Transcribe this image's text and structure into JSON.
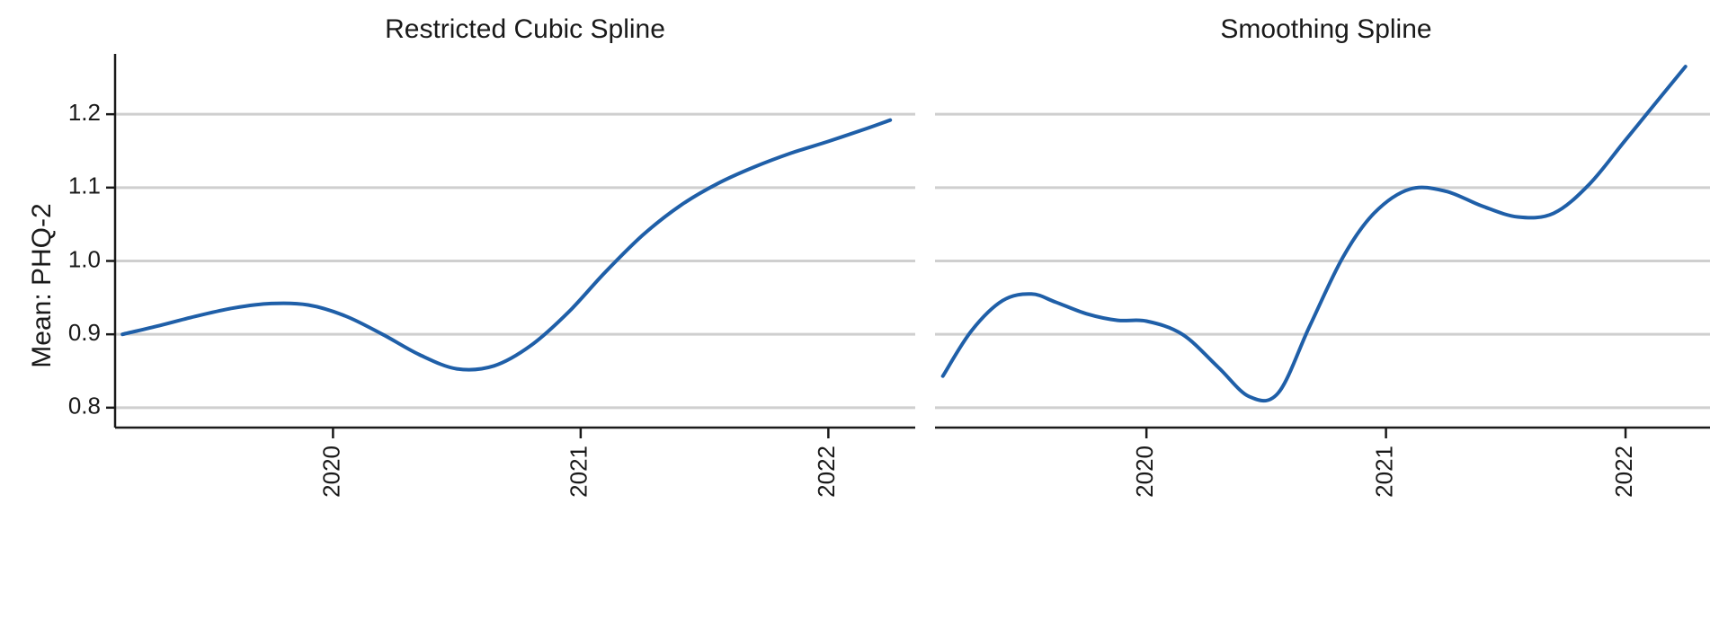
{
  "ylabel": "Mean: PHQ-2",
  "colors": {
    "line": "#1f5fa8",
    "grid": "#cfcfcf",
    "axis": "#1a1a1a"
  },
  "chart_data": [
    {
      "type": "line",
      "title": "Restricted Cubic Spline",
      "xlabel": "",
      "ylabel": "Mean: PHQ-2",
      "xlim": [
        2019.2,
        2022.3
      ],
      "ylim": [
        0.79,
        1.27
      ],
      "yticks": [
        0.8,
        0.9,
        1.0,
        1.1,
        1.2
      ],
      "ytick_labels": [
        "0.8",
        "0.9",
        "1.0",
        "1.1",
        "1.2"
      ],
      "xticks": [
        2020,
        2021,
        2022
      ],
      "xtick_labels": [
        "2020",
        "2021",
        "2022"
      ],
      "grid": "horizontal",
      "x": [
        2019.15,
        2019.3,
        2019.45,
        2019.6,
        2019.75,
        2019.9,
        2020.05,
        2020.2,
        2020.35,
        2020.5,
        2020.65,
        2020.8,
        2020.95,
        2021.1,
        2021.25,
        2021.4,
        2021.55,
        2021.7,
        2021.85,
        2022.0,
        2022.15,
        2022.25
      ],
      "y": [
        0.9,
        0.912,
        0.925,
        0.936,
        0.942,
        0.94,
        0.925,
        0.9,
        0.872,
        0.853,
        0.857,
        0.885,
        0.93,
        0.985,
        1.035,
        1.075,
        1.105,
        1.128,
        1.147,
        1.163,
        1.18,
        1.192
      ]
    },
    {
      "type": "line",
      "title": "Smoothing Spline",
      "xlabel": "",
      "ylabel": "",
      "xlim": [
        2019.2,
        2022.3
      ],
      "ylim": [
        0.79,
        1.27
      ],
      "yticks": [
        0.8,
        0.9,
        1.0,
        1.1,
        1.2
      ],
      "xticks": [
        2020,
        2021,
        2022
      ],
      "xtick_labels": [
        "2020",
        "2021",
        "2022"
      ],
      "grid": "horizontal",
      "x": [
        2019.15,
        2019.27,
        2019.4,
        2019.52,
        2019.62,
        2019.75,
        2019.88,
        2020.0,
        2020.15,
        2020.3,
        2020.43,
        2020.55,
        2020.68,
        2020.82,
        2020.95,
        2021.1,
        2021.25,
        2021.4,
        2021.55,
        2021.7,
        2021.85,
        2022.0,
        2022.15,
        2022.25
      ],
      "y": [
        0.843,
        0.905,
        0.946,
        0.955,
        0.944,
        0.928,
        0.919,
        0.918,
        0.9,
        0.855,
        0.815,
        0.82,
        0.91,
        1.005,
        1.065,
        1.098,
        1.095,
        1.075,
        1.06,
        1.065,
        1.105,
        1.165,
        1.225,
        1.265
      ]
    }
  ]
}
